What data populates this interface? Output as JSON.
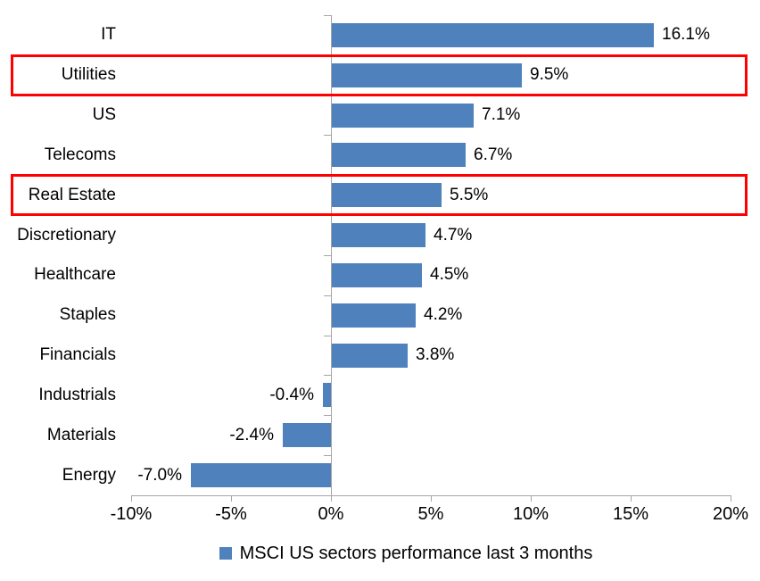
{
  "chart_data": {
    "type": "bar",
    "orientation": "horizontal",
    "title": "",
    "categories": [
      "IT",
      "Utilities",
      "US",
      "Telecoms",
      "Real Estate",
      "Discretionary",
      "Healthcare",
      "Staples",
      "Financials",
      "Industrials",
      "Materials",
      "Energy"
    ],
    "values": [
      16.1,
      9.5,
      7.1,
      6.7,
      5.5,
      4.7,
      4.5,
      4.2,
      3.8,
      -0.4,
      -2.4,
      -7.0
    ],
    "data_labels": [
      "16.1%",
      "9.5%",
      "7.1%",
      "6.7%",
      "5.5%",
      "4.7%",
      "4.5%",
      "4.2%",
      "3.8%",
      "-0.4%",
      "-2.4%",
      "-7.0%"
    ],
    "xlim": [
      -10,
      20
    ],
    "x_tick_values": [
      -10,
      -5,
      0,
      5,
      10,
      15,
      20
    ],
    "x_tick_labels": [
      "-10%",
      "-5%",
      "0%",
      "5%",
      "10%",
      "15%",
      "20%"
    ],
    "grid": false,
    "legend": "MSCI US sectors performance last 3 months",
    "legend_position": "bottom-center",
    "highlighted_categories": [
      "Utilities",
      "Real Estate"
    ],
    "colors": {
      "bar": "#4f81bd",
      "highlight_box": "#ff0000",
      "axis": "#a6a6a6",
      "text": "#000000",
      "background": "#ffffff"
    }
  }
}
